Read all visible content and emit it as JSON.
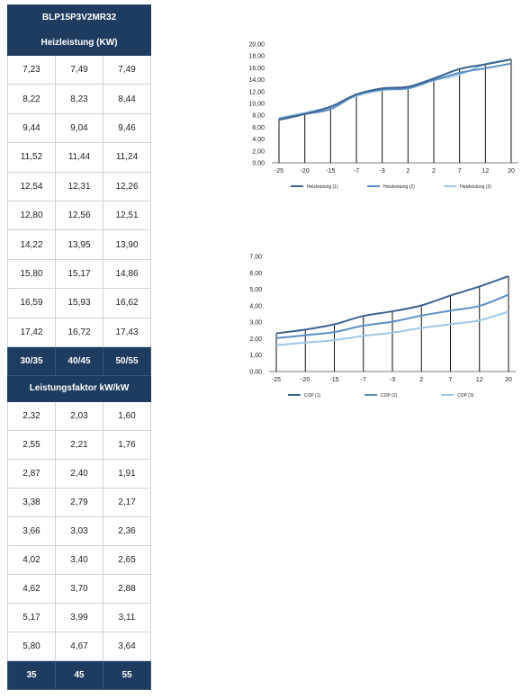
{
  "table": {
    "title": "BLP15P3V2MR32",
    "heat_header": "Heizleistung (KW)",
    "heat_rows": [
      [
        "7,23",
        "7,49",
        "7,49"
      ],
      [
        "8,22",
        "8,23",
        "8,44"
      ],
      [
        "9,44",
        "9,04",
        "9,46"
      ],
      [
        "11,52",
        "11,44",
        "11,24"
      ],
      [
        "12,54",
        "12,31",
        "12,26"
      ],
      [
        "12,80",
        "12,56",
        "12,51"
      ],
      [
        "14,22",
        "13,95",
        "13,90"
      ],
      [
        "15,80",
        "15,17",
        "14,86"
      ],
      [
        "16,59",
        "15,93",
        "16,62"
      ],
      [
        "17,42",
        "16,72",
        "17,43"
      ]
    ],
    "temp_labels": [
      "30/35",
      "40/45",
      "50/55"
    ],
    "cop_header": "Leistungsfaktor kW/kW",
    "cop_rows": [
      [
        "2,32",
        "2,03",
        "1,60"
      ],
      [
        "2,55",
        "2,21",
        "1,76"
      ],
      [
        "2,87",
        "2,40",
        "1,91"
      ],
      [
        "3,38",
        "2,79",
        "2,17"
      ],
      [
        "3,66",
        "3,03",
        "2,36"
      ],
      [
        "4,02",
        "3,40",
        "2,65"
      ],
      [
        "4,62",
        "3,70",
        "2,88"
      ],
      [
        "5,17",
        "3,99",
        "3,11"
      ],
      [
        "5,80",
        "4,67",
        "3,64"
      ]
    ],
    "cop_footer": [
      "35",
      "45",
      "55"
    ]
  },
  "colors": {
    "header_bg": "#1d3c60",
    "series1": "#3d6390",
    "series2": "#5b8fc4",
    "series3": "#9cc8ea"
  },
  "chart_data": [
    {
      "type": "line",
      "categories": [
        "-25",
        "-20",
        "-15",
        "-7",
        "-3",
        "2",
        "2",
        "7",
        "12",
        "20"
      ],
      "yticks": [
        "0,00",
        "2,00",
        "4,00",
        "6,00",
        "8,00",
        "10,00",
        "12,00",
        "14,00",
        "16,00",
        "18,00",
        "20,00"
      ],
      "ylim": [
        0,
        20
      ],
      "drop_lines": true,
      "legend_position": "bottom",
      "series": [
        {
          "name": "Heizleistung (1)",
          "values": [
            7.23,
            8.22,
            9.44,
            11.52,
            12.54,
            12.8,
            14.22,
            15.8,
            16.59,
            17.42
          ]
        },
        {
          "name": "Heizleistung (2)",
          "values": [
            7.49,
            8.23,
            9.04,
            11.44,
            12.31,
            12.56,
            13.95,
            15.17,
            15.93,
            16.72
          ]
        },
        {
          "name": "Heizleistung (3)",
          "values": [
            7.49,
            8.44,
            9.46,
            11.24,
            12.26,
            12.51,
            13.9,
            14.86,
            16.62,
            17.43
          ]
        }
      ]
    },
    {
      "type": "line",
      "categories": [
        "-25",
        "-20",
        "-15",
        "-7",
        "-3",
        "2",
        "7",
        "12",
        "20"
      ],
      "yticks": [
        "0,00",
        "1,00",
        "2,00",
        "3,00",
        "4,00",
        "5,00",
        "6,00",
        "7,00"
      ],
      "ylim": [
        0,
        7
      ],
      "drop_lines": true,
      "legend_position": "bottom",
      "series": [
        {
          "name": "COP (1)",
          "values": [
            2.32,
            2.55,
            2.87,
            3.38,
            3.66,
            4.02,
            4.62,
            5.17,
            5.8
          ]
        },
        {
          "name": "COP (2)",
          "values": [
            2.03,
            2.21,
            2.4,
            2.79,
            3.03,
            3.4,
            3.7,
            3.99,
            4.67
          ]
        },
        {
          "name": "COP (3)",
          "values": [
            1.6,
            1.76,
            1.91,
            2.17,
            2.36,
            2.65,
            2.88,
            3.11,
            3.64
          ]
        }
      ]
    }
  ]
}
